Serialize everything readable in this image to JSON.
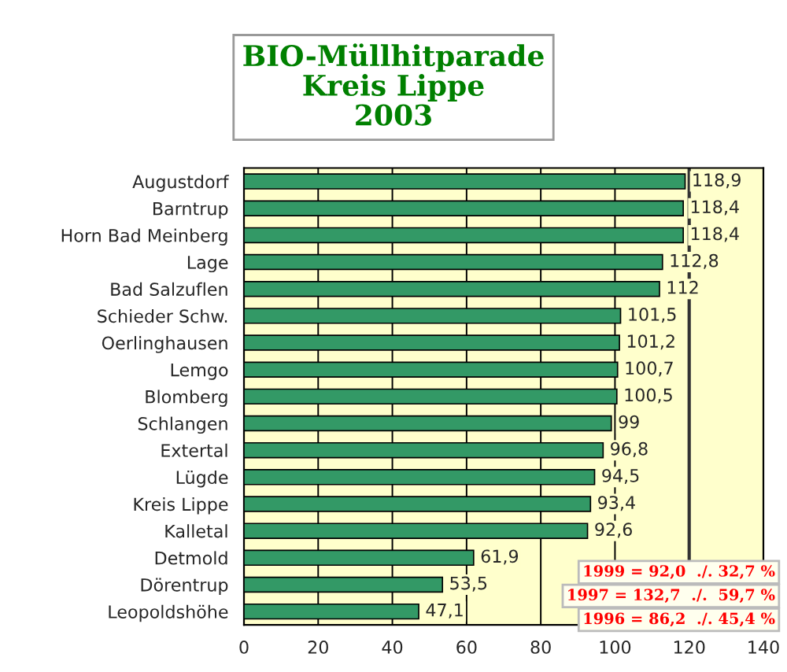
{
  "chart_data": {
    "type": "bar",
    "orientation": "horizontal",
    "title": "BIO-Müllhitparade\nKreis Lippe\n2003",
    "categories": [
      "Augustdorf",
      "Barntrup",
      "Horn Bad Meinberg",
      "Lage",
      "Bad Salzuflen",
      "Schieder Schw.",
      "Oerlinghausen",
      "Lemgo",
      "Blomberg",
      "Schlangen",
      "Extertal",
      "Lügde",
      "Kreis Lippe",
      "Kalletal",
      "Detmold",
      "Dörentrup",
      "Leopoldshöhe"
    ],
    "values": [
      118.9,
      118.4,
      118.4,
      112.8,
      112,
      101.5,
      101.2,
      100.7,
      100.5,
      99,
      96.8,
      94.5,
      93.4,
      92.6,
      61.9,
      53.5,
      47.1
    ],
    "value_labels": [
      "118,9",
      "118,4",
      "118,4",
      "112,8",
      "112",
      "101,5",
      "101,2",
      "100,7",
      "100,5",
      "99",
      "96,8",
      "94,5",
      "93,4",
      "92,6",
      "61,9",
      "53,5",
      "47,1"
    ],
    "color": "#339966",
    "xlim": [
      0,
      140
    ],
    "xticks": [
      0,
      20,
      40,
      60,
      80,
      100,
      120,
      140
    ],
    "grid": "x",
    "ref_lines": [
      {
        "axis": "x",
        "value": 120,
        "color": "#333333"
      }
    ],
    "annotations": [
      "1999 = 92,0  ./. 32,7 %",
      "1997 = 132,7  ./.  59,7 %",
      "1996 = 86,2  ./. 45,4 %"
    ]
  }
}
